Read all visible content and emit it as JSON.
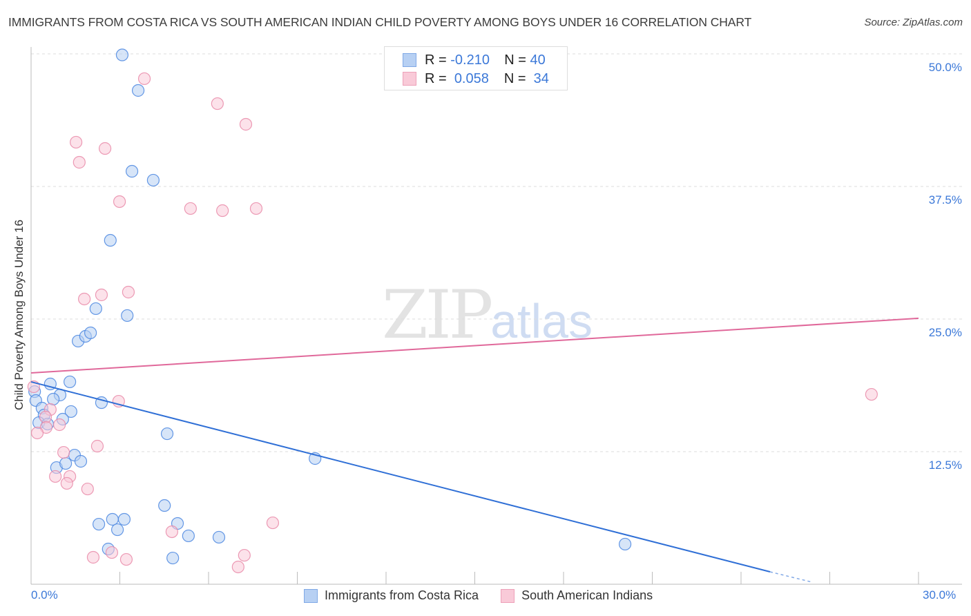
{
  "title": "IMMIGRANTS FROM COSTA RICA VS SOUTH AMERICAN INDIAN CHILD POVERTY AMONG BOYS UNDER 16 CORRELATION CHART",
  "source": "Source: ZipAtlas.com",
  "watermark": {
    "zip": "ZIP",
    "atlas": "atlas"
  },
  "stats": [
    {
      "r_label": "R =",
      "r": "-0.210",
      "n_label": "N =",
      "n": "40"
    },
    {
      "r_label": "R =",
      "r": "0.058",
      "n_label": "N =",
      "n": "34"
    }
  ],
  "colors": {
    "blue_fill": "#b7d0f3",
    "blue_stroke": "#4a86e0",
    "blue_line": "#2f6fd6",
    "pink_fill": "#f9cad8",
    "pink_stroke": "#e98aa8",
    "pink_line": "#e0689a",
    "tick": "#3b78d8"
  },
  "chart_data": {
    "type": "scatter",
    "title": "IMMIGRANTS FROM COSTA RICA VS SOUTH AMERICAN INDIAN CHILD POVERTY AMONG BOYS UNDER 16 CORRELATION CHART",
    "xlabel": "",
    "ylabel": "Child Poverty Among Boys Under 16",
    "xlim": [
      0,
      30
    ],
    "ylim": [
      0,
      50
    ],
    "x_tick_labels": [
      "0.0%",
      "30.0%"
    ],
    "y_ticks": [
      12.5,
      25.0,
      37.5,
      50.0
    ],
    "y_tick_labels": [
      "12.5%",
      "25.0%",
      "37.5%",
      "50.0%"
    ],
    "grid": true,
    "legend_position": "bottom-center",
    "series": [
      {
        "name": "Immigrants from Costa Rica",
        "r": -0.21,
        "n": 40,
        "trend": {
          "x": [
            0,
            24.98
          ],
          "y": [
            19.08,
            1.17
          ],
          "dashed_to": [
            26.4,
            0.2
          ]
        },
        "points": [
          [
            3.08,
            49.9
          ],
          [
            3.62,
            46.55
          ],
          [
            3.41,
            38.93
          ],
          [
            4.13,
            38.09
          ],
          [
            2.68,
            32.42
          ],
          [
            2.19,
            25.98
          ],
          [
            3.25,
            25.33
          ],
          [
            1.59,
            22.92
          ],
          [
            1.84,
            23.37
          ],
          [
            2.01,
            23.7
          ],
          [
            1.31,
            19.08
          ],
          [
            0.65,
            18.88
          ],
          [
            0.12,
            18.16
          ],
          [
            0.16,
            17.32
          ],
          [
            0.98,
            17.84
          ],
          [
            0.75,
            17.45
          ],
          [
            0.37,
            16.6
          ],
          [
            0.44,
            15.95
          ],
          [
            1.35,
            16.28
          ],
          [
            1.07,
            15.56
          ],
          [
            0.26,
            15.23
          ],
          [
            0.56,
            15.1
          ],
          [
            2.38,
            17.12
          ],
          [
            4.6,
            14.19
          ],
          [
            9.6,
            11.85
          ],
          [
            1.47,
            12.17
          ],
          [
            0.86,
            11.0
          ],
          [
            1.17,
            11.39
          ],
          [
            1.68,
            11.59
          ],
          [
            4.51,
            7.42
          ],
          [
            2.75,
            6.12
          ],
          [
            3.15,
            6.12
          ],
          [
            2.29,
            5.66
          ],
          [
            2.92,
            5.14
          ],
          [
            4.95,
            5.73
          ],
          [
            5.32,
            4.56
          ],
          [
            6.35,
            4.43
          ],
          [
            2.61,
            3.32
          ],
          [
            4.79,
            2.47
          ],
          [
            20.08,
            3.78
          ]
        ]
      },
      {
        "name": "South American Indians",
        "r": 0.058,
        "n": 34,
        "trend": {
          "x": [
            0,
            30
          ],
          "y": [
            19.92,
            25.07
          ]
        },
        "points": [
          [
            3.83,
            47.66
          ],
          [
            6.3,
            45.31
          ],
          [
            7.26,
            43.36
          ],
          [
            1.52,
            41.67
          ],
          [
            2.5,
            41.08
          ],
          [
            1.63,
            39.78
          ],
          [
            2.99,
            36.07
          ],
          [
            5.39,
            35.42
          ],
          [
            6.47,
            35.22
          ],
          [
            7.61,
            35.42
          ],
          [
            3.29,
            27.54
          ],
          [
            2.38,
            27.28
          ],
          [
            1.8,
            26.89
          ],
          [
            2.96,
            17.25
          ],
          [
            0.09,
            18.62
          ],
          [
            0.65,
            16.47
          ],
          [
            0.49,
            15.76
          ],
          [
            0.96,
            15.04
          ],
          [
            0.51,
            14.78
          ],
          [
            0.21,
            14.26
          ],
          [
            2.24,
            13.02
          ],
          [
            1.1,
            12.43
          ],
          [
            0.82,
            10.16
          ],
          [
            1.31,
            10.16
          ],
          [
            1.21,
            9.51
          ],
          [
            1.91,
            8.98
          ],
          [
            4.76,
            4.95
          ],
          [
            8.17,
            5.79
          ],
          [
            2.1,
            2.54
          ],
          [
            2.73,
            2.99
          ],
          [
            3.22,
            2.34
          ],
          [
            7.21,
            2.73
          ],
          [
            7.0,
            1.63
          ],
          [
            28.41,
            17.9
          ]
        ]
      }
    ]
  }
}
